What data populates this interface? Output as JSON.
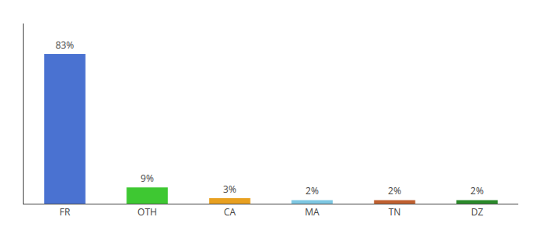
{
  "chart_data": {
    "type": "bar",
    "categories": [
      "FR",
      "OTH",
      "CA",
      "MA",
      "TN",
      "DZ"
    ],
    "values": [
      83,
      9,
      3,
      2,
      2,
      2
    ],
    "value_labels": [
      "83%",
      "9%",
      "3%",
      "2%",
      "2%",
      "2%"
    ],
    "colors": [
      "#4a72d1",
      "#3ec832",
      "#e8a020",
      "#7ec8e3",
      "#c06030",
      "#2a8a2a"
    ],
    "ylim": [
      0,
      100
    ],
    "data_labels": true,
    "tick_labels": "x",
    "grid": false
  }
}
